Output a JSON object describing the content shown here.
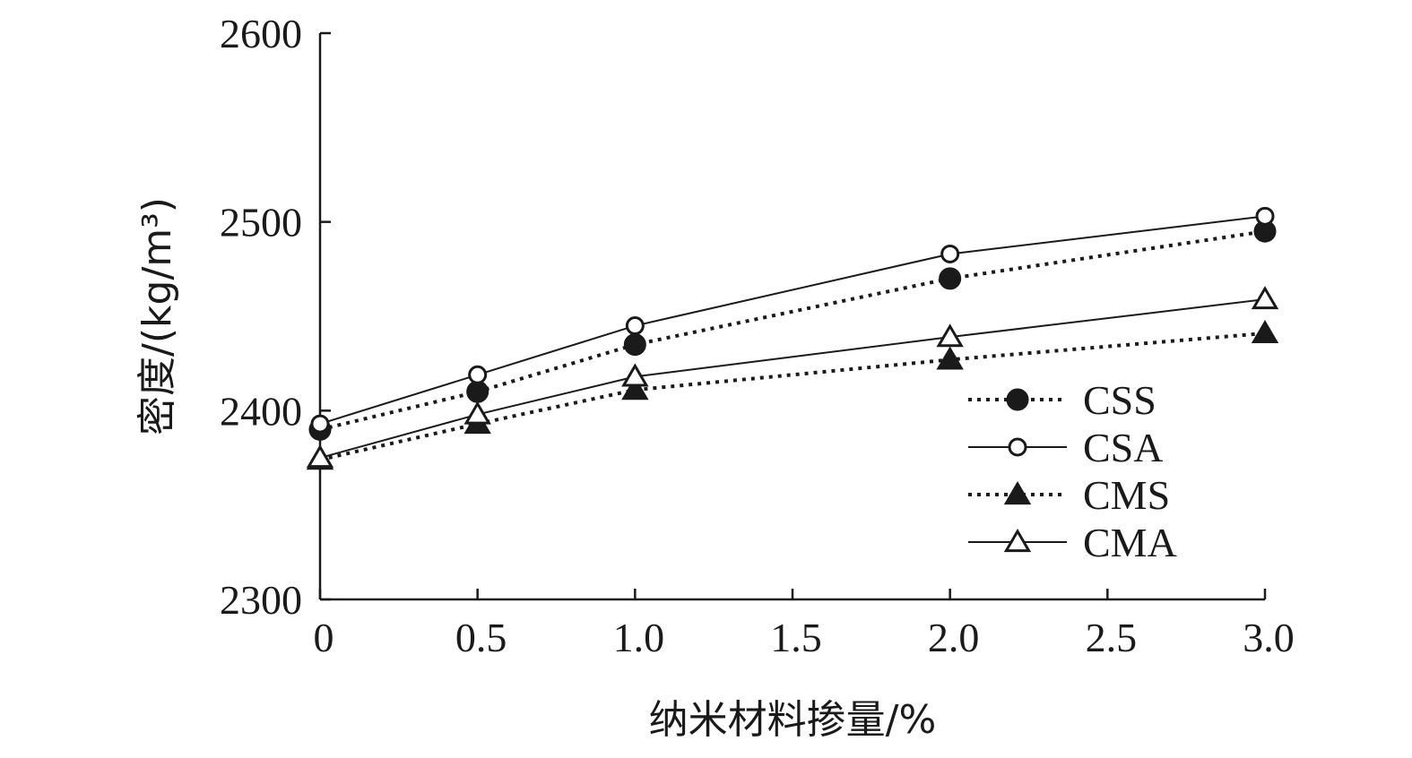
{
  "chart_data": {
    "type": "line",
    "xlabel": "纳米材料掺量/%",
    "ylabel": "密度/(kg/m³)",
    "x": [
      0,
      0.5,
      1.0,
      2.0,
      3.0
    ],
    "xticks": [
      "0",
      "0.5",
      "1.0",
      "1.5",
      "2.0",
      "2.5",
      "3.0"
    ],
    "xlim": [
      0,
      3.0
    ],
    "yticks": [
      "2300",
      "2400",
      "2500",
      "2600"
    ],
    "ylim": [
      2300,
      2600
    ],
    "grid": false,
    "legend_position": "lower-right",
    "series": [
      {
        "name": "CSS",
        "values": [
          2390,
          2410,
          2435,
          2470,
          2495
        ],
        "line": "dotted",
        "marker": "circle-filled"
      },
      {
        "name": "CSA",
        "values": [
          2393,
          2419,
          2445,
          2483,
          2503
        ],
        "line": "solid",
        "marker": "circle-open"
      },
      {
        "name": "CMS",
        "values": [
          2374,
          2393,
          2411,
          2427,
          2441
        ],
        "line": "dotted",
        "marker": "triangle-filled"
      },
      {
        "name": "CMA",
        "values": [
          2375,
          2398,
          2418,
          2439,
          2459
        ],
        "line": "solid",
        "marker": "triangle-open"
      }
    ]
  }
}
